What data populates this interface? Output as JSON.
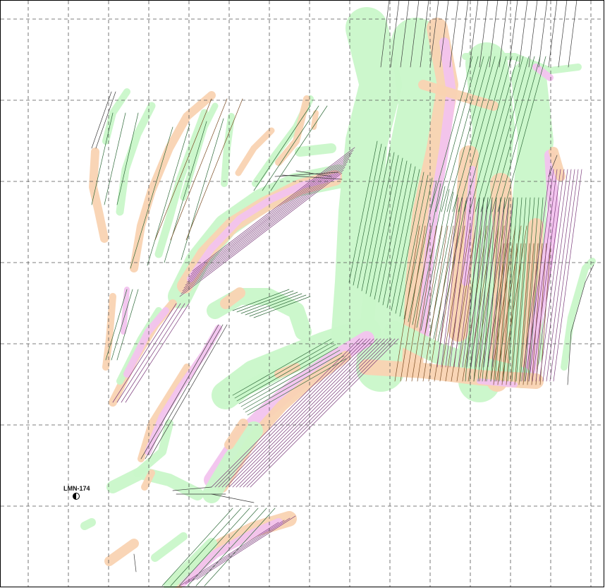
{
  "map": {
    "well": {
      "label": "LMN-174",
      "symbol": "half-filled-circle-icon"
    },
    "colors": {
      "background": "#ffffff",
      "grid": "#555555",
      "green_zone": "#c9f7c9",
      "orange_zone": "#f9d3b2",
      "pink_zone": "#f2c3ee",
      "trace": "#3a3a3a"
    }
  }
}
